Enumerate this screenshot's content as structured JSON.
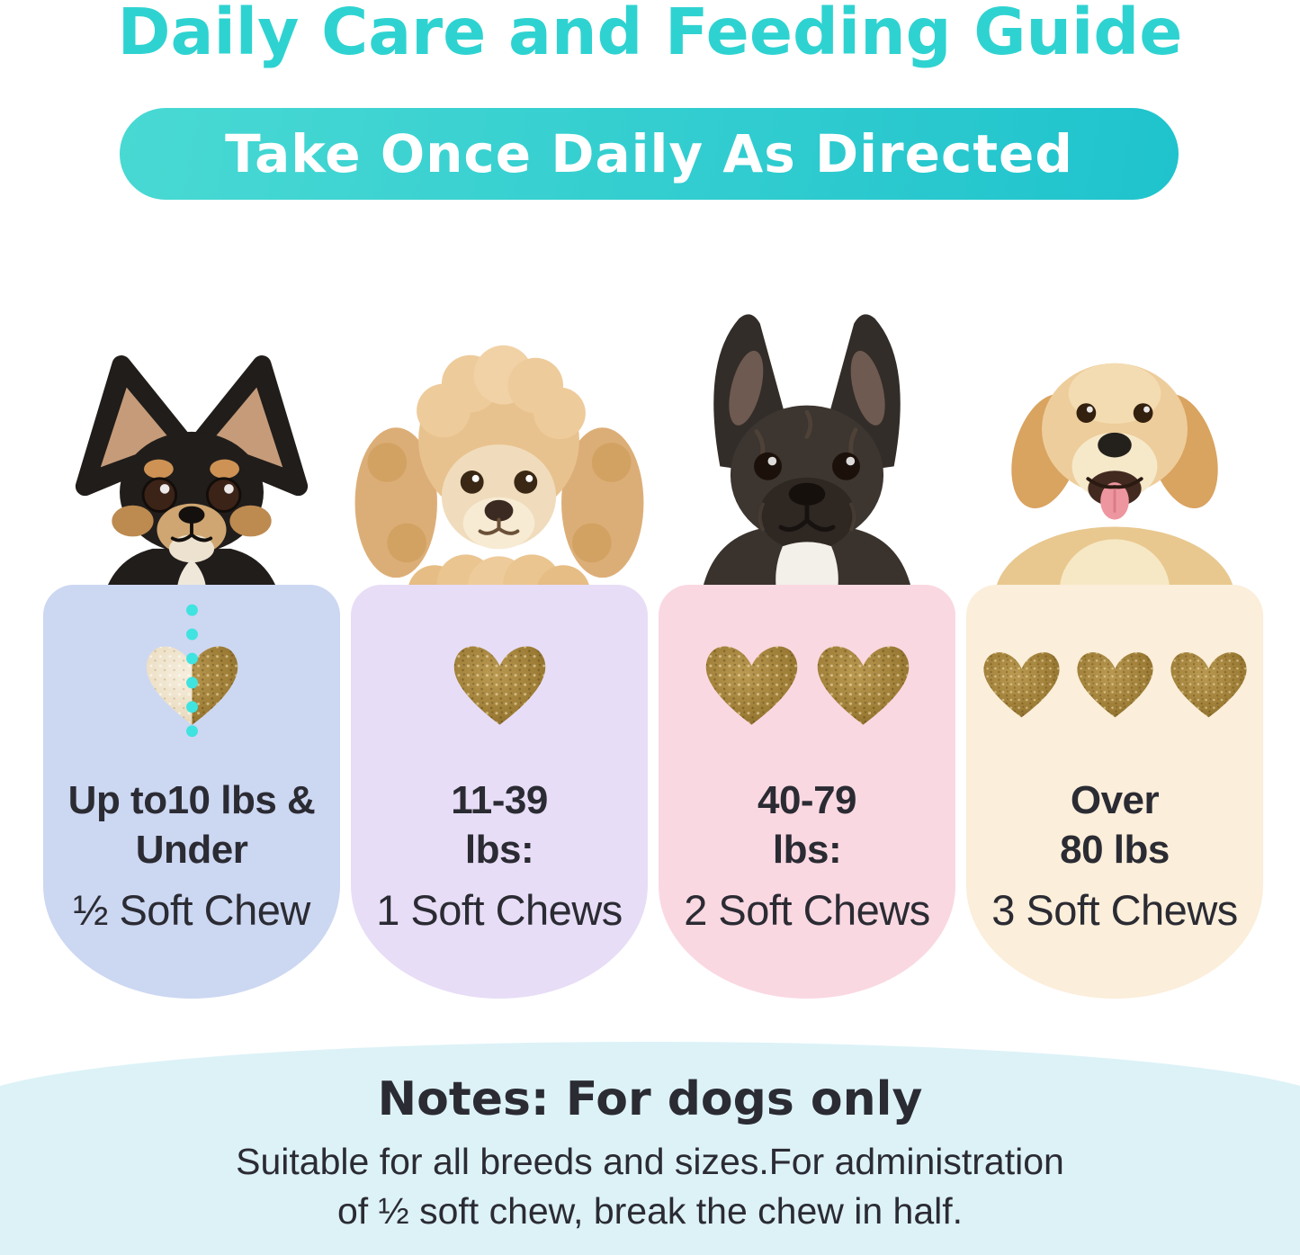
{
  "header": {
    "title": "Daily Care and Feeding Guide",
    "banner": "Take Once Daily As Directed"
  },
  "columns": [
    {
      "breed": "chihuahua",
      "card_color": "#ccd7f2",
      "weight_lines": [
        "Up to10 lbs &",
        "Under"
      ],
      "dose": "½ Soft Chew",
      "chews": {
        "half": true,
        "full": 0
      }
    },
    {
      "breed": "poodle",
      "card_color": "#e8ddf6",
      "weight_lines": [
        "11-39",
        "lbs:"
      ],
      "dose": "1 Soft Chews",
      "chews": {
        "half": false,
        "full": 1
      }
    },
    {
      "breed": "french-bulldog",
      "card_color": "#fad8e1",
      "weight_lines": [
        "40-79",
        "lbs:"
      ],
      "dose": "2 Soft Chews",
      "chews": {
        "half": false,
        "full": 2
      }
    },
    {
      "breed": "golden-retriever",
      "card_color": "#fbeeda",
      "weight_lines": [
        "Over",
        "80 lbs"
      ],
      "dose": "3 Soft Chews",
      "chews": {
        "half": false,
        "full": 3
      }
    }
  ],
  "notes": {
    "title": "Notes: For dogs only",
    "line1": "Suitable for all breeds and sizes.For administration",
    "line2": "of ½ soft chew, break the chew in half."
  },
  "colors": {
    "accent_teal": "#2ed3d1",
    "banner_gradient_start": "#49d9d3",
    "banner_gradient_end": "#1fc3cd",
    "notes_bg": "#dcf2f7",
    "text_dark": "#2b2b33",
    "dot_teal": "#3fe3e0",
    "chew_brown": "#9c7c35",
    "chew_cream": "#f0e6d2"
  }
}
